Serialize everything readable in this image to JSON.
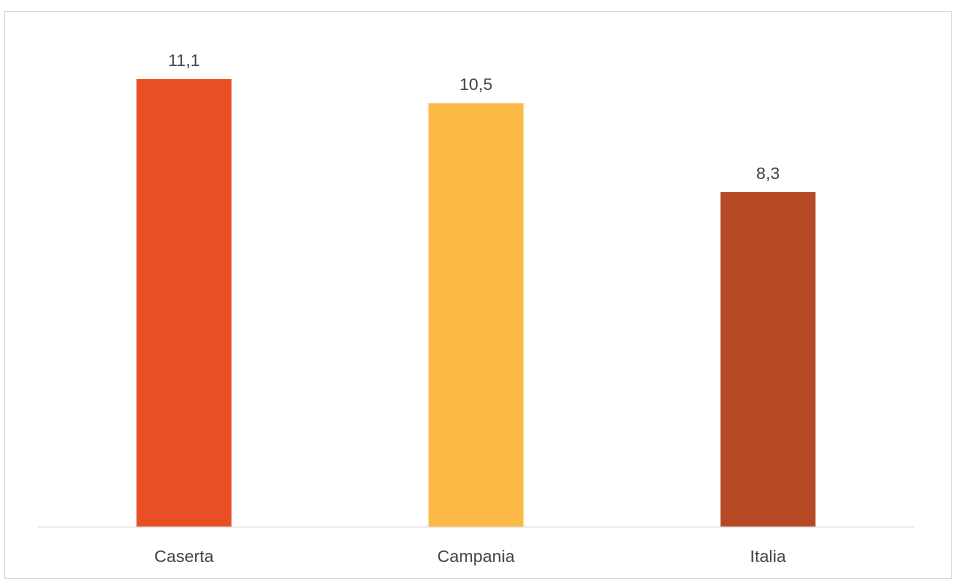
{
  "chart_data": {
    "type": "bar",
    "categories": [
      "Caserta",
      "Campania",
      "Italia"
    ],
    "values": [
      11.1,
      10.5,
      8.3
    ],
    "value_labels": [
      "11,1",
      "10,5",
      "8,3"
    ],
    "colors": [
      "#E84F22",
      "#FDB945",
      "#B64A25"
    ],
    "title": "",
    "xlabel": "",
    "ylabel": "",
    "ylim": [
      0,
      12.5
    ],
    "grid": false,
    "legend": "none"
  }
}
